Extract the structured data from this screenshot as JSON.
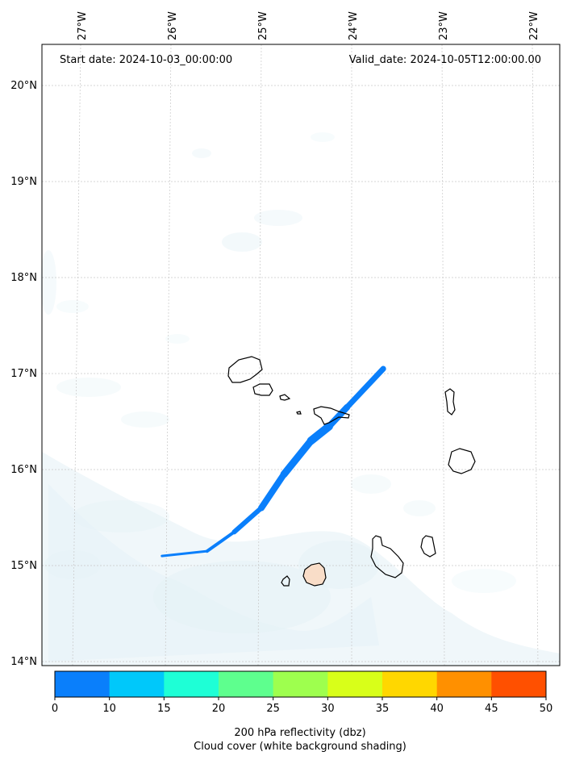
{
  "map": {
    "start_date": "Start date: 2024-10-03_00:00:00",
    "valid_date": "Valid_date: 2024-10-05T12:00:00.00",
    "lon_labels": [
      "27°W",
      "26°W",
      "25°W",
      "24°W",
      "23°W",
      "22°W"
    ],
    "lat_labels": [
      "20°N",
      "19°N",
      "18°N",
      "17°N",
      "16°N",
      "15°N",
      "14°N"
    ],
    "extent": {
      "lon": [
        -27.42,
        -21.75
      ],
      "lat": [
        13.95,
        20.4
      ]
    },
    "reflectivity_band": [
      [
        -26.1,
        15.1
      ],
      [
        -25.6,
        15.15
      ],
      [
        -25.3,
        15.35
      ],
      [
        -25.0,
        15.6
      ],
      [
        -24.75,
        15.95
      ],
      [
        -24.45,
        16.3
      ],
      [
        -24.25,
        16.45
      ],
      [
        -24.05,
        16.65
      ],
      [
        -23.65,
        17.05
      ]
    ],
    "colors": {
      "reflectivity": "#0a7ffb",
      "cloud": "#dcedf4",
      "island_outline": "#000000",
      "fogo_fill": "#f9ddc8"
    }
  },
  "colorbar": {
    "ticks": [
      "0",
      "10",
      "15",
      "20",
      "25",
      "30",
      "35",
      "40",
      "45",
      "50"
    ],
    "colors": [
      "#0a7ffb",
      "#00c8fa",
      "#1effd6",
      "#5eff8e",
      "#9eff4e",
      "#d8ff19",
      "#ffd700",
      "#ff9000",
      "#ff5000"
    ],
    "label_line1": "200 hPa reflectivity (dbz)",
    "label_line2": "Cloud cover (white background shading)"
  }
}
